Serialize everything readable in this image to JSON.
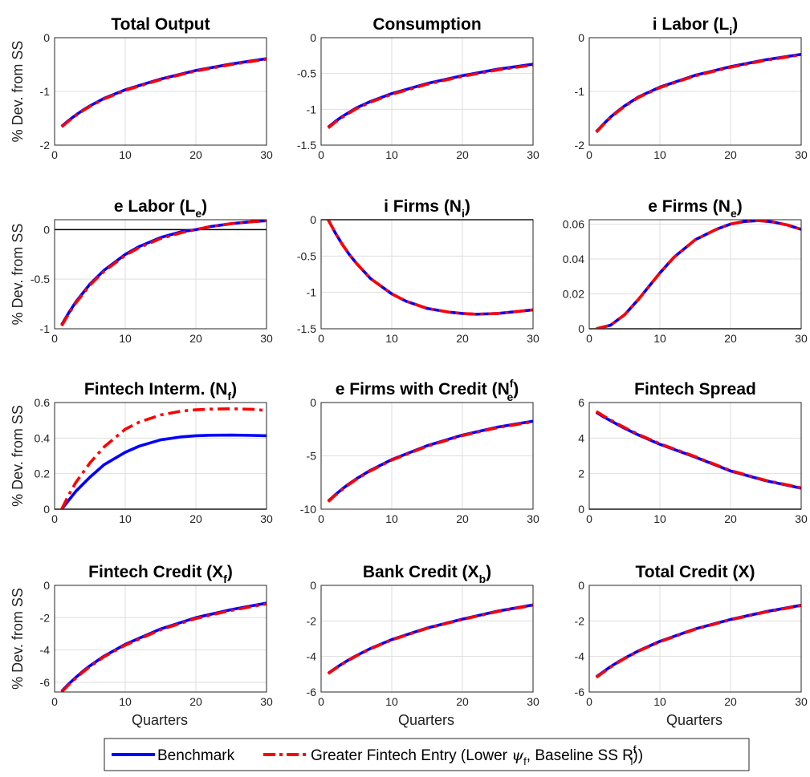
{
  "colors": {
    "benchmark": "#0000ff",
    "greater_entry": "#ff0000"
  },
  "legend": {
    "position": "bottom-center",
    "entries": [
      {
        "series": "benchmark",
        "label": "Benchmark",
        "style": "solid"
      },
      {
        "series": "greater_entry",
        "label_prefix": "Greater Fintech Entry (Lower ",
        "label_symbol": "ψ",
        "label_symbol_sub": "f",
        "label_mid": ", Baseline SS R",
        "label_mid_sub": "l",
        "label_mid_sup": "f",
        "label_suffix": "))",
        "style": "dashdot"
      }
    ]
  },
  "chart_data": [
    {
      "type": "line",
      "title": "Total Output",
      "title_sub": "",
      "title_sup": "",
      "title_suffix": "",
      "ylabel": "% Dev. from SS",
      "xlabel": "",
      "xlim": [
        0,
        30
      ],
      "ylim": [
        -2,
        0
      ],
      "xticks": [
        "0",
        "10",
        "20",
        "30"
      ],
      "yticks": [
        "0",
        "-1",
        "-2"
      ],
      "ytick_values": [
        0,
        -1,
        -2
      ],
      "zero_line": false,
      "grid": true,
      "x": [
        1,
        2,
        3,
        4,
        5,
        7,
        10,
        15,
        20,
        25,
        30
      ],
      "series": [
        {
          "key": "benchmark",
          "values": [
            -1.65,
            -1.54,
            -1.44,
            -1.35,
            -1.27,
            -1.13,
            -0.97,
            -0.77,
            -0.61,
            -0.49,
            -0.39
          ]
        },
        {
          "key": "greater_entry",
          "values": [
            -1.66,
            -1.55,
            -1.45,
            -1.36,
            -1.28,
            -1.14,
            -0.98,
            -0.78,
            -0.62,
            -0.5,
            -0.4
          ]
        }
      ]
    },
    {
      "type": "line",
      "title": "Consumption",
      "title_sub": "",
      "title_sup": "",
      "title_suffix": "",
      "ylabel": "",
      "xlabel": "",
      "xlim": [
        0,
        30
      ],
      "ylim": [
        -1.5,
        0
      ],
      "xticks": [
        "0",
        "10",
        "20",
        "30"
      ],
      "yticks": [
        "0",
        "-0.5",
        "-1",
        "-1.5"
      ],
      "ytick_values": [
        0,
        -0.5,
        -1,
        -1.5
      ],
      "zero_line": false,
      "grid": true,
      "x": [
        1,
        2,
        3,
        4,
        5,
        7,
        10,
        15,
        20,
        25,
        30
      ],
      "series": [
        {
          "key": "benchmark",
          "values": [
            -1.25,
            -1.17,
            -1.1,
            -1.04,
            -0.98,
            -0.89,
            -0.78,
            -0.64,
            -0.53,
            -0.44,
            -0.37
          ]
        },
        {
          "key": "greater_entry",
          "values": [
            -1.26,
            -1.18,
            -1.11,
            -1.05,
            -0.99,
            -0.9,
            -0.79,
            -0.65,
            -0.54,
            -0.45,
            -0.38
          ]
        }
      ]
    },
    {
      "type": "line",
      "title": "i Labor (L",
      "title_sub": "i",
      "title_sup": "",
      "title_suffix": ")",
      "ylabel": "",
      "xlabel": "",
      "xlim": [
        0,
        30
      ],
      "ylim": [
        -2,
        0
      ],
      "xticks": [
        "0",
        "10",
        "20",
        "30"
      ],
      "yticks": [
        "0",
        "-1",
        "-2"
      ],
      "ytick_values": [
        0,
        -1,
        -2
      ],
      "zero_line": false,
      "grid": true,
      "x": [
        1,
        2,
        3,
        4,
        5,
        7,
        10,
        15,
        20,
        25,
        30
      ],
      "series": [
        {
          "key": "benchmark",
          "values": [
            -1.75,
            -1.61,
            -1.48,
            -1.37,
            -1.27,
            -1.1,
            -0.92,
            -0.7,
            -0.54,
            -0.41,
            -0.31
          ]
        },
        {
          "key": "greater_entry",
          "values": [
            -1.76,
            -1.62,
            -1.49,
            -1.38,
            -1.28,
            -1.11,
            -0.93,
            -0.71,
            -0.55,
            -0.42,
            -0.32
          ]
        }
      ]
    },
    {
      "type": "line",
      "title": "e Labor (L",
      "title_sub": "e",
      "title_sup": "",
      "title_suffix": ")",
      "ylabel": "% Dev. from SS",
      "xlabel": "",
      "xlim": [
        0,
        30
      ],
      "ylim": [
        -1,
        0.1
      ],
      "xticks": [
        "0",
        "10",
        "20",
        "30"
      ],
      "yticks": [
        "0",
        "-0.5",
        "-1"
      ],
      "ytick_values": [
        0,
        -0.5,
        -1
      ],
      "zero_line": true,
      "grid": true,
      "x": [
        1,
        2,
        3,
        4,
        5,
        7,
        10,
        12,
        15,
        18,
        20,
        22,
        25,
        28,
        30
      ],
      "series": [
        {
          "key": "benchmark",
          "values": [
            -0.96,
            -0.84,
            -0.73,
            -0.64,
            -0.55,
            -0.41,
            -0.25,
            -0.17,
            -0.08,
            -0.02,
            0.0,
            0.03,
            0.06,
            0.08,
            0.09
          ]
        },
        {
          "key": "greater_entry",
          "values": [
            -0.97,
            -0.85,
            -0.74,
            -0.65,
            -0.56,
            -0.42,
            -0.26,
            -0.18,
            -0.09,
            -0.03,
            0.0,
            0.03,
            0.06,
            0.08,
            0.09
          ]
        }
      ]
    },
    {
      "type": "line",
      "title": "i Firms (N",
      "title_sub": "i",
      "title_sup": "",
      "title_suffix": ")",
      "ylabel": "",
      "xlabel": "",
      "xlim": [
        0,
        30
      ],
      "ylim": [
        -1.5,
        0
      ],
      "xticks": [
        "0",
        "10",
        "20",
        "30"
      ],
      "yticks": [
        "0",
        "-0.5",
        "-1",
        "-1.5"
      ],
      "ytick_values": [
        0,
        -0.5,
        -1,
        -1.5
      ],
      "zero_line": true,
      "grid": true,
      "x": [
        1,
        2,
        3,
        4,
        5,
        7,
        10,
        12,
        15,
        18,
        20,
        22,
        25,
        28,
        30
      ],
      "series": [
        {
          "key": "benchmark",
          "values": [
            0.0,
            -0.18,
            -0.34,
            -0.48,
            -0.6,
            -0.81,
            -1.02,
            -1.12,
            -1.22,
            -1.27,
            -1.29,
            -1.3,
            -1.29,
            -1.26,
            -1.24
          ]
        },
        {
          "key": "greater_entry",
          "values": [
            0.0,
            -0.18,
            -0.34,
            -0.48,
            -0.6,
            -0.81,
            -1.02,
            -1.12,
            -1.22,
            -1.27,
            -1.29,
            -1.3,
            -1.29,
            -1.26,
            -1.24
          ]
        }
      ]
    },
    {
      "type": "line",
      "title": "e Firms (N",
      "title_sub": "e",
      "title_sup": "",
      "title_suffix": ")",
      "ylabel": "",
      "xlabel": "",
      "xlim": [
        0,
        30
      ],
      "ylim": [
        0,
        0.0625
      ],
      "xticks": [
        "0",
        "10",
        "20",
        "30"
      ],
      "yticks": [
        "0",
        "0.02",
        "0.04",
        "0.06"
      ],
      "ytick_values": [
        0,
        0.02,
        0.04,
        0.06
      ],
      "zero_line": true,
      "grid": true,
      "x": [
        1,
        3,
        5,
        7,
        10,
        12,
        15,
        18,
        20,
        22,
        24,
        26,
        28,
        30
      ],
      "series": [
        {
          "key": "benchmark",
          "values": [
            0.0,
            0.002,
            0.008,
            0.017,
            0.032,
            0.041,
            0.051,
            0.057,
            0.06,
            0.0615,
            0.062,
            0.0612,
            0.0595,
            0.057
          ]
        },
        {
          "key": "greater_entry",
          "values": [
            0.0,
            0.002,
            0.008,
            0.017,
            0.032,
            0.041,
            0.051,
            0.057,
            0.06,
            0.0615,
            0.062,
            0.0612,
            0.0595,
            0.057
          ]
        }
      ]
    },
    {
      "type": "line",
      "title": "Fintech Interm. (N",
      "title_sub": "f",
      "title_sup": "",
      "title_suffix": ")",
      "ylabel": "% Dev. from SS",
      "xlabel": "",
      "xlim": [
        0,
        30
      ],
      "ylim": [
        0,
        0.6
      ],
      "xticks": [
        "0",
        "10",
        "20",
        "30"
      ],
      "yticks": [
        "0",
        "0.2",
        "0.4",
        "0.6"
      ],
      "ytick_values": [
        0,
        0.2,
        0.4,
        0.6
      ],
      "zero_line": true,
      "grid": true,
      "x": [
        1,
        2,
        3,
        5,
        7,
        10,
        12,
        15,
        18,
        20,
        22,
        25,
        28,
        30
      ],
      "series": [
        {
          "key": "benchmark",
          "values": [
            0.0,
            0.05,
            0.1,
            0.18,
            0.25,
            0.32,
            0.355,
            0.39,
            0.407,
            0.413,
            0.416,
            0.417,
            0.415,
            0.413
          ]
        },
        {
          "key": "greater_entry",
          "values": [
            0.0,
            0.08,
            0.15,
            0.26,
            0.35,
            0.45,
            0.49,
            0.53,
            0.552,
            0.559,
            0.563,
            0.565,
            0.562,
            0.555
          ]
        }
      ]
    },
    {
      "type": "line",
      "title": "e Firms with Credit (N",
      "title_sub": "e",
      "title_sup": "f",
      "title_suffix": ")",
      "ylabel": "",
      "xlabel": "",
      "xlim": [
        0,
        30
      ],
      "ylim": [
        -10,
        0
      ],
      "xticks": [
        "0",
        "10",
        "20",
        "30"
      ],
      "yticks": [
        "0",
        "-5",
        "-10"
      ],
      "ytick_values": [
        0,
        -5,
        -10
      ],
      "zero_line": false,
      "grid": true,
      "x": [
        1,
        2,
        3,
        4,
        5,
        7,
        10,
        15,
        20,
        25,
        30
      ],
      "series": [
        {
          "key": "benchmark",
          "values": [
            -9.25,
            -8.65,
            -8.1,
            -7.6,
            -7.15,
            -6.35,
            -5.35,
            -4.05,
            -3.05,
            -2.3,
            -1.75
          ]
        },
        {
          "key": "greater_entry",
          "values": [
            -9.3,
            -8.7,
            -8.15,
            -7.65,
            -7.2,
            -6.4,
            -5.4,
            -4.1,
            -3.1,
            -2.35,
            -1.8
          ]
        }
      ]
    },
    {
      "type": "line",
      "title": "Fintech Spread",
      "title_sub": "",
      "title_sup": "",
      "title_suffix": "",
      "ylabel": "",
      "xlabel": "",
      "xlim": [
        0,
        30
      ],
      "ylim": [
        0,
        6
      ],
      "xticks": [
        "0",
        "10",
        "20",
        "30"
      ],
      "yticks": [
        "0",
        "2",
        "4",
        "6"
      ],
      "ytick_values": [
        0,
        2,
        4,
        6
      ],
      "zero_line": true,
      "grid": true,
      "x": [
        1,
        2,
        3,
        5,
        7,
        10,
        15,
        20,
        25,
        30
      ],
      "series": [
        {
          "key": "benchmark",
          "values": [
            5.45,
            5.2,
            4.98,
            4.55,
            4.17,
            3.65,
            2.93,
            2.15,
            1.6,
            1.18
          ]
        },
        {
          "key": "greater_entry",
          "values": [
            5.5,
            5.25,
            5.02,
            4.59,
            4.2,
            3.68,
            2.96,
            2.17,
            1.62,
            1.2
          ]
        }
      ]
    },
    {
      "type": "line",
      "title": "Fintech Credit (X",
      "title_sub": "f",
      "title_sup": "",
      "title_suffix": ")",
      "ylabel": "% Dev. from SS",
      "xlabel": "Quarters",
      "xlim": [
        0,
        30
      ],
      "ylim": [
        -6.6,
        0
      ],
      "xticks": [
        "0",
        "10",
        "20",
        "30"
      ],
      "yticks": [
        "0",
        "-2",
        "-4",
        "-6"
      ],
      "ytick_values": [
        0,
        -2,
        -4,
        -6
      ],
      "zero_line": false,
      "grid": true,
      "x": [
        1,
        2,
        3,
        4,
        5,
        7,
        10,
        15,
        20,
        25,
        30
      ],
      "series": [
        {
          "key": "benchmark",
          "values": [
            -6.55,
            -6.1,
            -5.7,
            -5.32,
            -4.98,
            -4.38,
            -3.65,
            -2.7,
            -2.0,
            -1.5,
            -1.1
          ]
        },
        {
          "key": "greater_entry",
          "values": [
            -6.6,
            -6.15,
            -5.75,
            -5.37,
            -5.03,
            -4.42,
            -3.7,
            -2.75,
            -2.05,
            -1.55,
            -1.15
          ]
        }
      ]
    },
    {
      "type": "line",
      "title": "Bank Credit (X",
      "title_sub": "b",
      "title_sup": "",
      "title_suffix": ")",
      "ylabel": "",
      "xlabel": "Quarters",
      "xlim": [
        0,
        30
      ],
      "ylim": [
        -6,
        0
      ],
      "xticks": [
        "0",
        "10",
        "20",
        "30"
      ],
      "yticks": [
        "0",
        "-2",
        "-4",
        "-6"
      ],
      "ytick_values": [
        0,
        -2,
        -4,
        -6
      ],
      "zero_line": false,
      "grid": true,
      "x": [
        1,
        2,
        3,
        4,
        5,
        7,
        10,
        15,
        20,
        25,
        30
      ],
      "series": [
        {
          "key": "benchmark",
          "values": [
            -4.95,
            -4.67,
            -4.41,
            -4.17,
            -3.95,
            -3.55,
            -3.05,
            -2.4,
            -1.9,
            -1.45,
            -1.1
          ]
        },
        {
          "key": "greater_entry",
          "values": [
            -4.97,
            -4.69,
            -4.43,
            -4.19,
            -3.97,
            -3.57,
            -3.07,
            -2.42,
            -1.92,
            -1.47,
            -1.12
          ]
        }
      ]
    },
    {
      "type": "line",
      "title": "Total Credit (X)",
      "title_sub": "",
      "title_sup": "",
      "title_suffix": "",
      "ylabel": "",
      "xlabel": "Quarters",
      "xlim": [
        0,
        30
      ],
      "ylim": [
        -6,
        0
      ],
      "xticks": [
        "0",
        "10",
        "20",
        "30"
      ],
      "yticks": [
        "0",
        "-2",
        "-4",
        "-6"
      ],
      "ytick_values": [
        0,
        -2,
        -4,
        -6
      ],
      "zero_line": false,
      "grid": true,
      "x": [
        1,
        2,
        3,
        4,
        5,
        7,
        10,
        15,
        20,
        25,
        30
      ],
      "series": [
        {
          "key": "benchmark",
          "values": [
            -5.15,
            -4.86,
            -4.58,
            -4.33,
            -4.1,
            -3.68,
            -3.15,
            -2.45,
            -1.92,
            -1.48,
            -1.12
          ]
        },
        {
          "key": "greater_entry",
          "values": [
            -5.18,
            -4.89,
            -4.61,
            -4.36,
            -4.12,
            -3.7,
            -3.17,
            -2.47,
            -1.94,
            -1.5,
            -1.14
          ]
        }
      ]
    }
  ]
}
